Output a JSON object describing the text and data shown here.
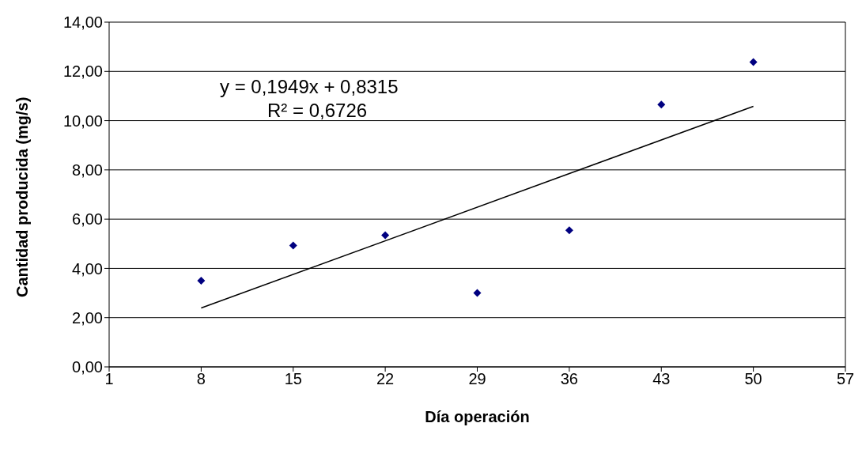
{
  "chart_data": {
    "type": "scatter",
    "xlabel": "Día operación",
    "ylabel": "Cantidad producida (mg/s)",
    "annotations": [
      "y = 0,1949x + 0,8315",
      "R² = 0,6726"
    ],
    "xlim": [
      1,
      57
    ],
    "xticks": [
      1,
      8,
      15,
      22,
      29,
      36,
      43,
      50,
      57
    ],
    "ylim": [
      0,
      14
    ],
    "yticks": [
      {
        "value": 0,
        "label": "0,00"
      },
      {
        "value": 2,
        "label": "2,00"
      },
      {
        "value": 4,
        "label": "4,00"
      },
      {
        "value": 6,
        "label": "6,00"
      },
      {
        "value": 8,
        "label": "8,00"
      },
      {
        "value": 10,
        "label": "10,00"
      },
      {
        "value": 12,
        "label": "12,00"
      },
      {
        "value": 14,
        "label": "14,00"
      }
    ],
    "grid": "y",
    "series": [
      {
        "marker": "diamond",
        "color": "#000080",
        "x": [
          8,
          15,
          22,
          29,
          36,
          43,
          50
        ],
        "values": [
          3.5,
          4.93,
          5.35,
          3.0,
          5.55,
          10.65,
          12.38
        ]
      },
      {
        "type": "line",
        "color": "#000000",
        "x": [
          8,
          50
        ],
        "values": [
          2.39,
          10.58
        ],
        "line_style": "solid",
        "marker": "none"
      }
    ]
  }
}
